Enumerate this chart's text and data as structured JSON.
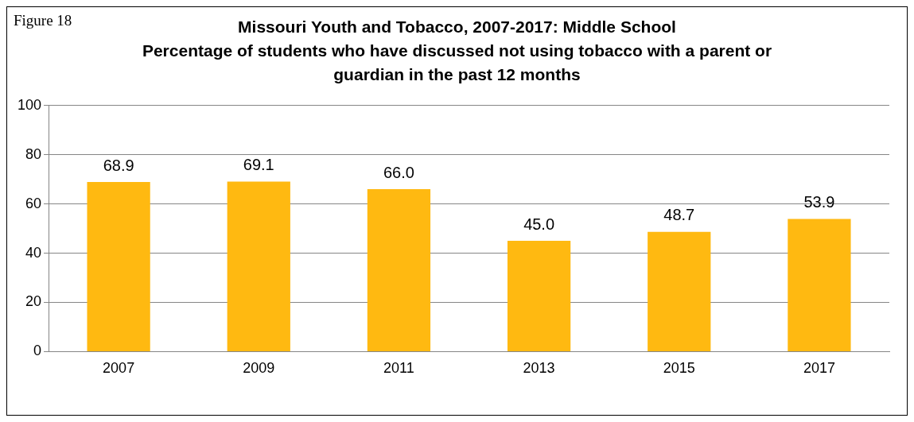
{
  "chart_data": {
    "type": "bar",
    "title": "Missouri Youth and Tobacco, 2007-2017: Middle School",
    "subtitle": "Percentage of students who have discussed not using tobacco with a parent or guardian in the past 12 months",
    "annotations": [
      "Figure 18"
    ],
    "categories": [
      "2007",
      "2009",
      "2011",
      "2013",
      "2015",
      "2017"
    ],
    "values": [
      68.9,
      69.1,
      66.0,
      45.0,
      48.7,
      53.9
    ],
    "value_labels": [
      "68.9",
      "69.1",
      "66.0",
      "45.0",
      "48.7",
      "53.9"
    ],
    "color": "#ffb911",
    "ylim": [
      0,
      100
    ],
    "yticks": [
      0,
      20,
      40,
      60,
      80,
      100
    ],
    "grid": "y",
    "legend": false
  }
}
